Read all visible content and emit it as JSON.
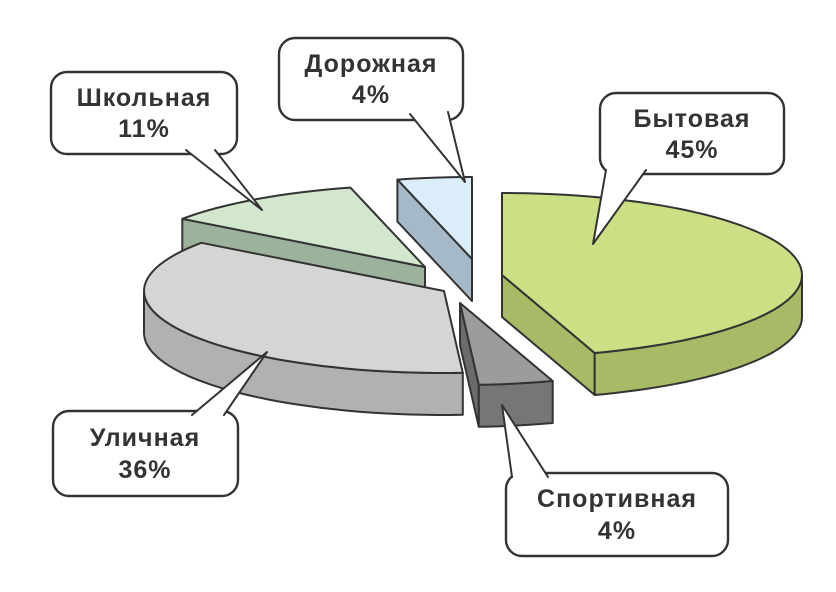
{
  "figure": {
    "background_color": "#ffffff",
    "outline_color": "#333333",
    "text_color": "#333333"
  },
  "chart_data": {
    "type": "pie",
    "style": "3d-exploded",
    "title": "",
    "unit": "%",
    "legend": "none",
    "labels_style": "callout-bubbles",
    "start_angle_deg": 0,
    "direction": "clockwise",
    "slices": [
      {
        "label": "Бытовая",
        "value": 45,
        "pct_label": "45%",
        "color_top": "#cbdf85",
        "color_side": "#a7ba65",
        "color_front": "#a7ba65"
      },
      {
        "label": "Спортивная",
        "value": 4,
        "pct_label": "4%",
        "color_top": "#9c9c9a",
        "color_side": "#6b6b69",
        "color_front": "#767674"
      },
      {
        "label": "Уличная",
        "value": 36,
        "pct_label": "36%",
        "color_top": "#d5d5d3",
        "color_side": "#b1b1af",
        "color_front": "#b1b1af"
      },
      {
        "label": "Школьная",
        "value": 11,
        "pct_label": "11%",
        "color_top": "#d3e7cf",
        "color_side": "#9cb29d",
        "color_front": "#9cb29d"
      },
      {
        "label": "Дорожная",
        "value": 4,
        "pct_label": "4%",
        "color_top": "#dbedf8",
        "color_side": "#a6b9c8",
        "color_front": "#a6b9c8"
      }
    ]
  }
}
